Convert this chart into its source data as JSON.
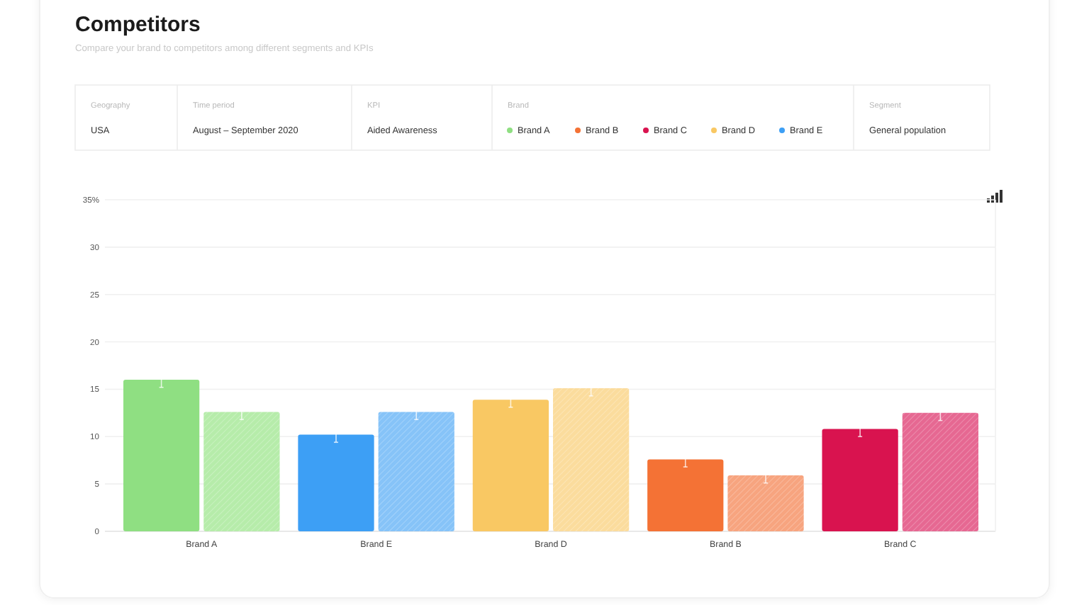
{
  "chart_data": {
    "type": "bar",
    "title": "Competitors",
    "subtitle": "Compare your brand to competitors among different segments and KPIs",
    "annotations": [
      "Geography",
      "USA",
      "Time period",
      "August – September 2020",
      "KPI",
      "Aided Awareness",
      "Segment",
      "General population"
    ],
    "legend_title": "Brand",
    "categories": [
      "Brand A",
      "Brand E",
      "Brand D",
      "Brand B",
      "Brand C"
    ],
    "series": [
      {
        "colors": [
          "#8fdf82",
          "#3d9ff5",
          "#f9c863",
          "#f47235",
          "#d9134f"
        ],
        "values": [
          16,
          10.2,
          13.9,
          7.6,
          10.8
        ],
        "errors": [
          0.8,
          0.8,
          0.8,
          0.8,
          0.8
        ]
      },
      {
        "colors": [
          "#b6ecaa",
          "#86c3f8",
          "#fbdc9d",
          "#f7a47f",
          "#e66892"
        ],
        "values": [
          12.6,
          12.6,
          15.1,
          5.9,
          12.5
        ],
        "errors": [
          0.8,
          0.8,
          0.8,
          0.8,
          0.8
        ]
      }
    ],
    "ylim": [
      0,
      35
    ],
    "yticks": [
      0,
      5,
      10,
      15,
      20,
      25,
      30,
      {
        "value": 35,
        "label": "35%"
      }
    ],
    "grid": "y"
  }
}
